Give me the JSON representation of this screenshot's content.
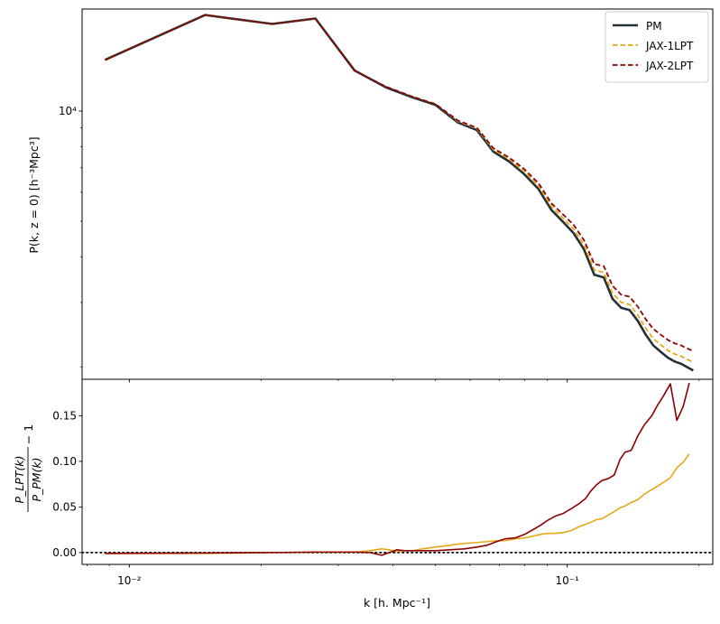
{
  "chart_data": [
    {
      "type": "line",
      "panel": "top",
      "y_scale": "log",
      "x_scale": "log",
      "xlim": [
        0.0078,
        0.215
      ],
      "ylim": [
        1850,
        19000
      ],
      "ylabel": "P(k, z = 0) [h⁻³Mpc³]",
      "ytick_labels": [
        {
          "value": 10000,
          "label": "10⁴"
        }
      ],
      "legend_position": "top-right",
      "x": [
        0.0088,
        0.0149,
        0.0212,
        0.0266,
        0.0327,
        0.0386,
        0.0443,
        0.05,
        0.0563,
        0.0622,
        0.0678,
        0.0737,
        0.0797,
        0.086,
        0.092,
        0.0978,
        0.1034,
        0.1092,
        0.1153,
        0.1212,
        0.1269,
        0.1328,
        0.1388,
        0.145,
        0.1511,
        0.1572,
        0.1634,
        0.1697,
        0.1758,
        0.1819,
        0.1882,
        0.194
      ],
      "series": [
        {
          "name": "PM",
          "style": "solid",
          "color": "#243238",
          "values": [
            13800,
            18300,
            17300,
            17900,
            12900,
            11600,
            10900,
            10400,
            9300,
            8870,
            7750,
            7280,
            6730,
            6120,
            5370,
            4980,
            4640,
            4190,
            3570,
            3510,
            3070,
            2900,
            2860,
            2670,
            2450,
            2290,
            2200,
            2120,
            2070,
            2040,
            1995,
            1955
          ]
        },
        {
          "name": "JAX-1LPT",
          "style": "dashed",
          "color": "#e6a817",
          "values": [
            13800,
            18300,
            17300,
            17900,
            12900,
            11650,
            10950,
            10450,
            9380,
            8960,
            7850,
            7390,
            6860,
            6250,
            5490,
            5100,
            4760,
            4310,
            3680,
            3620,
            3180,
            3000,
            2960,
            2770,
            2550,
            2390,
            2300,
            2220,
            2170,
            2140,
            2095,
            2060
          ]
        },
        {
          "name": "JAX-2LPT",
          "style": "dashed",
          "color": "#8b0000",
          "values": [
            13800,
            18300,
            17300,
            17900,
            12900,
            11650,
            10950,
            10450,
            9420,
            9000,
            7920,
            7460,
            6950,
            6350,
            5600,
            5220,
            4890,
            4440,
            3820,
            3770,
            3330,
            3150,
            3110,
            2920,
            2700,
            2540,
            2450,
            2370,
            2320,
            2290,
            2245,
            2210
          ]
        }
      ]
    },
    {
      "type": "line",
      "panel": "bottom",
      "x_scale": "log",
      "xlim": [
        0.0078,
        0.215
      ],
      "ylim": [
        -0.013,
        0.19
      ],
      "xlabel": "k [h. Mpc⁻¹]",
      "ylabel_num": "P_LPT(k)",
      "ylabel_den": "P_PM(k)",
      "ylabel_suffix": "− 1",
      "xtick_labels": [
        {
          "value": 0.01,
          "label": "10⁻²"
        },
        {
          "value": 0.1,
          "label": "10⁻¹"
        }
      ],
      "ytick_labels": [
        0.0,
        0.05,
        0.1,
        0.15
      ],
      "ytick_text": [
        "0.00",
        "0.05",
        "0.10",
        "0.15"
      ],
      "reference_line": {
        "y": 0,
        "style": "dotted",
        "color": "#000000"
      },
      "x": [
        0.0088,
        0.0149,
        0.0212,
        0.0266,
        0.0327,
        0.0354,
        0.0377,
        0.0392,
        0.0408,
        0.0425,
        0.0443,
        0.0466,
        0.05,
        0.054,
        0.0582,
        0.0622,
        0.0656,
        0.069,
        0.072,
        0.076,
        0.08,
        0.0835,
        0.087,
        0.09,
        0.094,
        0.098,
        0.102,
        0.106,
        0.11,
        0.113,
        0.1165,
        0.12,
        0.124,
        0.128,
        0.132,
        0.1355,
        0.14,
        0.145,
        0.15,
        0.156,
        0.161,
        0.166,
        0.172,
        0.178,
        0.184,
        0.19
      ],
      "series": [
        {
          "name": "JAX-1LPT",
          "color": "#e6a817",
          "values": [
            -0.001,
            -0.001,
            0.0,
            0.0005,
            0.0005,
            0.002,
            0.004,
            0.003,
            0.001,
            0.002,
            0.002,
            0.004,
            0.006,
            0.008,
            0.01,
            0.011,
            0.012,
            0.013,
            0.013,
            0.015,
            0.016,
            0.018,
            0.02,
            0.021,
            0.021,
            0.022,
            0.024,
            0.028,
            0.031,
            0.033,
            0.036,
            0.037,
            0.041,
            0.045,
            0.049,
            0.051,
            0.055,
            0.058,
            0.064,
            0.069,
            0.073,
            0.077,
            0.082,
            0.093,
            0.099,
            0.108
          ]
        },
        {
          "name": "JAX-2LPT",
          "color": "#8b0000",
          "values": [
            -0.001,
            -0.0005,
            0.0,
            0.0005,
            0.0005,
            0.0,
            -0.003,
            0.0,
            0.003,
            0.002,
            0.002,
            0.002,
            0.002,
            0.003,
            0.004,
            0.006,
            0.008,
            0.012,
            0.015,
            0.016,
            0.02,
            0.025,
            0.03,
            0.035,
            0.04,
            0.043,
            0.048,
            0.053,
            0.059,
            0.067,
            0.074,
            0.079,
            0.081,
            0.085,
            0.102,
            0.11,
            0.112,
            0.128,
            0.14,
            0.15,
            0.162,
            0.172,
            0.185,
            0.145,
            0.16,
            0.186
          ]
        }
      ]
    }
  ]
}
